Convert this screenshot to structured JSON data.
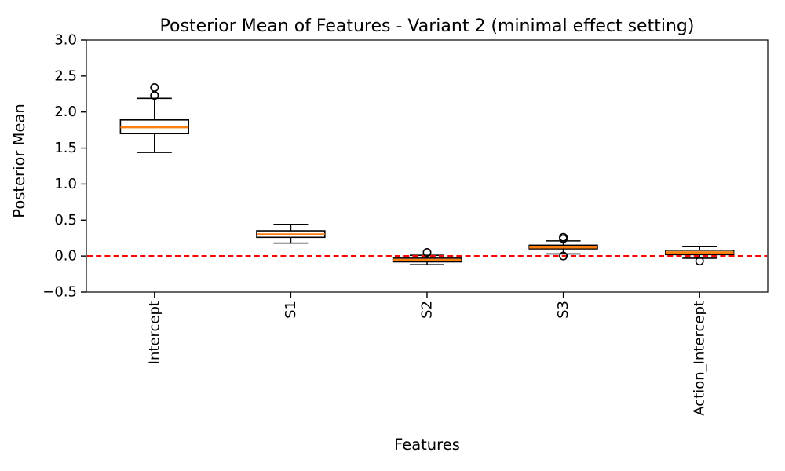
{
  "chart_data": {
    "type": "boxplot",
    "title": "Posterior Mean of Features - Variant 2 (minimal effect setting)",
    "xlabel": "Features",
    "ylabel": "Posterior Mean",
    "categories": [
      "Intercept",
      "S1",
      "S2",
      "S3",
      "Action_Intercept"
    ],
    "series": [
      {
        "category": "Intercept",
        "whisker_low": 1.44,
        "q1": 1.7,
        "median": 1.79,
        "q3": 1.89,
        "whisker_high": 2.19,
        "outliers": [
          2.23,
          2.34
        ]
      },
      {
        "category": "S1",
        "whisker_low": 0.18,
        "q1": 0.26,
        "median": 0.3,
        "q3": 0.35,
        "whisker_high": 0.44,
        "outliers": []
      },
      {
        "category": "S2",
        "whisker_low": -0.12,
        "q1": -0.08,
        "median": -0.055,
        "q3": -0.03,
        "whisker_high": 0.01,
        "outliers": [
          0.05
        ]
      },
      {
        "category": "S3",
        "whisker_low": 0.03,
        "q1": 0.1,
        "median": 0.12,
        "q3": 0.15,
        "whisker_high": 0.21,
        "outliers": [
          0.24,
          0.26,
          0.0
        ]
      },
      {
        "category": "Action_Intercept",
        "whisker_low": -0.03,
        "q1": 0.02,
        "median": 0.05,
        "q3": 0.08,
        "whisker_high": 0.13,
        "outliers": [
          -0.07
        ]
      }
    ],
    "yticks": [
      -0.5,
      0.0,
      0.5,
      1.0,
      1.5,
      2.0,
      2.5,
      3.0
    ],
    "ytick_labels": [
      "−0.5",
      "0.0",
      "0.5",
      "1.0",
      "1.5",
      "2.0",
      "2.5",
      "3.0"
    ],
    "ylim": [
      -0.5,
      3.0
    ],
    "grid": false,
    "legend": "none",
    "reference_line": {
      "y": 0.0,
      "color": "#ff0000",
      "style": "dashed"
    },
    "colors": {
      "median": "#ff7f0e",
      "box_edge": "#000000",
      "box_fill": "#ffffff",
      "whisker": "#000000",
      "outlier_edge": "#000000",
      "background": "#ffffff"
    }
  }
}
